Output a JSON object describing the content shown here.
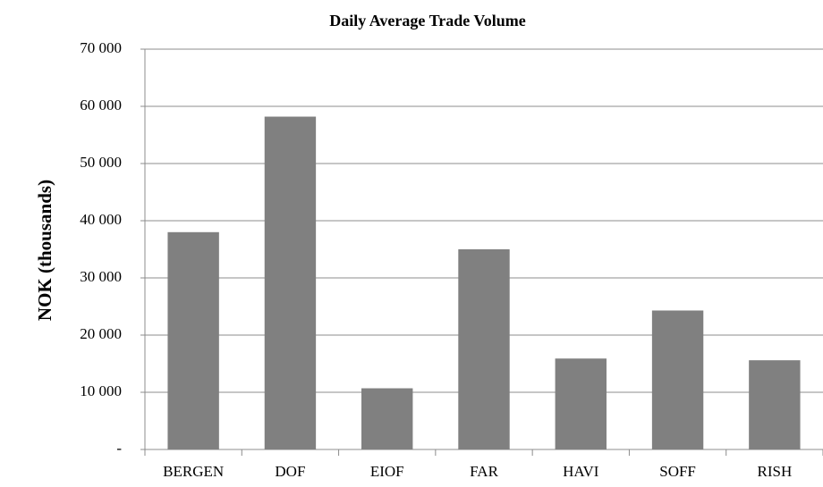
{
  "chart_data": {
    "type": "bar",
    "title": "Daily Average Trade Volume",
    "y_label": "NOK (thousands)",
    "categories": [
      "BERGEN",
      "DOF",
      "EIOF",
      "FAR",
      "HAVI",
      "SOFF",
      "RISH"
    ],
    "values": [
      38000,
      58200,
      10700,
      35000,
      15900,
      24300,
      15600
    ],
    "color": "#808080",
    "ylim": [
      0,
      70000
    ],
    "yticks": [
      {
        "value": 0,
        "label": "-"
      },
      {
        "value": 10000,
        "label": "10 000"
      },
      {
        "value": 20000,
        "label": "20 000"
      },
      {
        "value": 30000,
        "label": "30 000"
      },
      {
        "value": 40000,
        "label": "40 000"
      },
      {
        "value": 50000,
        "label": "50 000"
      },
      {
        "value": 60000,
        "label": "60 000"
      },
      {
        "value": 70000,
        "label": "70 000"
      }
    ],
    "grid": true
  }
}
